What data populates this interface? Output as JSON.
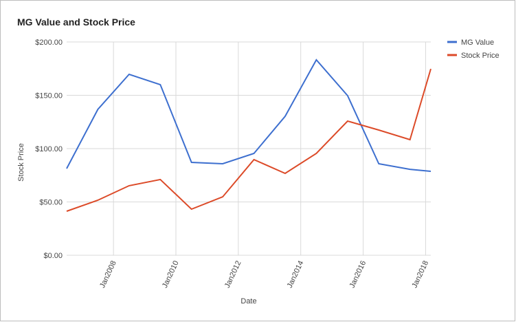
{
  "chart_data": {
    "type": "line",
    "title": "MG Value and Stock Price",
    "x_label": "Date",
    "y_label": "Stock Price",
    "x": [
      "2006-07",
      "2007-07",
      "2008-07",
      "2009-07",
      "2010-07",
      "2011-07",
      "2012-07",
      "2013-07",
      "2014-07",
      "2015-07",
      "2016-07",
      "2017-07",
      "2018-03"
    ],
    "series": [
      {
        "name": "MG Value",
        "color": "#3d6fcf",
        "values": [
          81.3,
          136.8,
          169.7,
          160,
          87.1,
          85.8,
          95.5,
          130.3,
          183.2,
          149.7,
          85.8,
          80.6,
          78.7
        ]
      },
      {
        "name": "Stock Price",
        "color": "#dc4a28",
        "values": [
          41.3,
          51.6,
          65.2,
          71,
          43.2,
          54.8,
          89.7,
          76.8,
          95.5,
          125.8,
          117.4,
          108.4,
          174.8
        ]
      }
    ],
    "xlim": [
      "2006-07",
      "2018-03"
    ],
    "xticks": [
      {
        "value": "2008-01",
        "label": "Jan2008"
      },
      {
        "value": "2010-01",
        "label": "Jan2010"
      },
      {
        "value": "2012-01",
        "label": "Jan2012"
      },
      {
        "value": "2014-01",
        "label": "Jan2014"
      },
      {
        "value": "2016-01",
        "label": "Jan2016"
      },
      {
        "value": "2018-01",
        "label": "Jan2018"
      }
    ],
    "ylim": [
      0,
      200
    ],
    "yticks": [
      {
        "value": 0,
        "label": "$0.00"
      },
      {
        "value": 50,
        "label": "$50.00"
      },
      {
        "value": 100,
        "label": "$100.00"
      },
      {
        "value": 150,
        "label": "$150.00"
      },
      {
        "value": 200,
        "label": "$200.00"
      }
    ],
    "grid": true,
    "legend": "right"
  }
}
